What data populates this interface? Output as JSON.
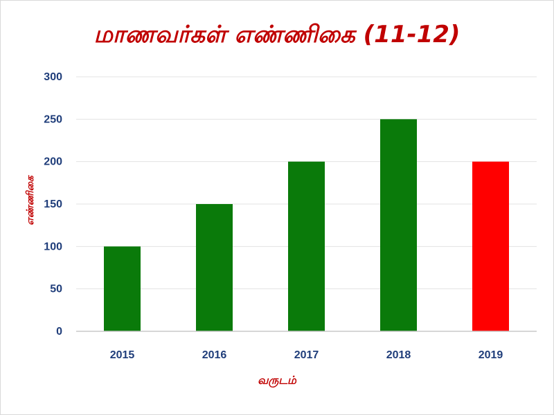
{
  "chart_data": {
    "type": "bar",
    "title": "மாணவர்கள் எண்ணிகை (11-12)",
    "xlabel": "வருடம்",
    "ylabel": "எண்ணிகை",
    "categories": [
      "2015",
      "2016",
      "2017",
      "2018",
      "2019"
    ],
    "values": [
      100,
      150,
      200,
      250,
      200
    ],
    "bar_colors": [
      "#0a7a0a",
      "#0a7a0a",
      "#0a7a0a",
      "#0a7a0a",
      "#ff0000"
    ],
    "ylim": [
      0,
      300
    ],
    "yticks": [
      "0",
      "50",
      "100",
      "150",
      "200",
      "250",
      "300"
    ],
    "grid": true,
    "legend": "none"
  }
}
